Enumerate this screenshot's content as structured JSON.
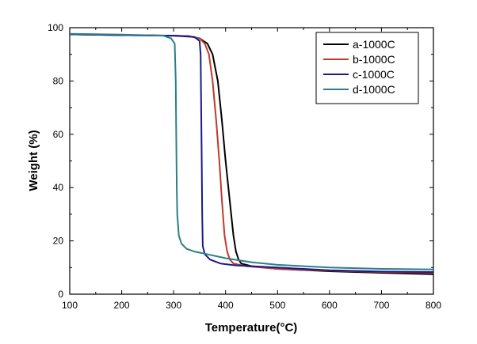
{
  "chart_data": {
    "type": "line",
    "title": "",
    "xlabel": "Temperature(°C)",
    "ylabel": "Weight (%)",
    "xlim": [
      100,
      800
    ],
    "ylim": [
      0,
      100
    ],
    "xticks": [
      "100",
      "200",
      "300",
      "400",
      "500",
      "600",
      "700",
      "800"
    ],
    "yticks": [
      "0",
      "20",
      "40",
      "60",
      "80",
      "100"
    ],
    "grid": false,
    "legend_position": "top-right",
    "series": [
      {
        "name": "a-1000C",
        "color": "#000000",
        "points": [
          [
            100,
            97.5
          ],
          [
            200,
            97.2
          ],
          [
            300,
            97.0
          ],
          [
            330,
            96.8
          ],
          [
            350,
            96.0
          ],
          [
            365,
            94.0
          ],
          [
            375,
            90.0
          ],
          [
            385,
            80.0
          ],
          [
            393,
            65.0
          ],
          [
            400,
            50.0
          ],
          [
            408,
            35.0
          ],
          [
            415,
            22.0
          ],
          [
            420,
            16.0
          ],
          [
            425,
            13.0
          ],
          [
            430,
            11.5
          ],
          [
            450,
            10.5
          ],
          [
            500,
            9.5
          ],
          [
            600,
            8.6
          ],
          [
            700,
            8.0
          ],
          [
            800,
            7.5
          ]
        ]
      },
      {
        "name": "b-1000C",
        "color": "#c0392b",
        "points": [
          [
            100,
            97.5
          ],
          [
            200,
            97.2
          ],
          [
            300,
            97.0
          ],
          [
            330,
            96.8
          ],
          [
            350,
            96.0
          ],
          [
            360,
            94.0
          ],
          [
            368,
            90.0
          ],
          [
            375,
            80.0
          ],
          [
            382,
            65.0
          ],
          [
            388,
            50.0
          ],
          [
            393,
            35.0
          ],
          [
            398,
            22.0
          ],
          [
            403,
            16.0
          ],
          [
            408,
            13.0
          ],
          [
            415,
            11.5
          ],
          [
            440,
            10.5
          ],
          [
            500,
            9.5
          ],
          [
            600,
            8.8
          ],
          [
            700,
            8.3
          ],
          [
            800,
            8.0
          ]
        ]
      },
      {
        "name": "c-1000C",
        "color": "#1a1a8c",
        "points": [
          [
            100,
            97.5
          ],
          [
            200,
            97.2
          ],
          [
            300,
            97.0
          ],
          [
            340,
            96.5
          ],
          [
            350,
            95.0
          ],
          [
            352,
            90.0
          ],
          [
            353,
            70.0
          ],
          [
            354,
            50.0
          ],
          [
            355,
            30.0
          ],
          [
            356,
            18.0
          ],
          [
            360,
            15.0
          ],
          [
            370,
            13.0
          ],
          [
            390,
            11.5
          ],
          [
            420,
            10.8
          ],
          [
            500,
            10.0
          ],
          [
            600,
            9.0
          ],
          [
            700,
            8.5
          ],
          [
            800,
            8.3
          ]
        ]
      },
      {
        "name": "d-1000C",
        "color": "#2a7f8a",
        "points": [
          [
            100,
            97.7
          ],
          [
            200,
            97.4
          ],
          [
            280,
            97.0
          ],
          [
            295,
            96.0
          ],
          [
            302,
            94.0
          ],
          [
            304,
            80.0
          ],
          [
            305,
            60.0
          ],
          [
            306,
            40.0
          ],
          [
            307,
            30.0
          ],
          [
            310,
            22.0
          ],
          [
            315,
            19.0
          ],
          [
            325,
            17.0
          ],
          [
            340,
            16.0
          ],
          [
            360,
            15.2
          ],
          [
            400,
            13.5
          ],
          [
            450,
            12.0
          ],
          [
            500,
            11.0
          ],
          [
            600,
            10.0
          ],
          [
            700,
            9.5
          ],
          [
            800,
            9.3
          ]
        ]
      }
    ]
  }
}
